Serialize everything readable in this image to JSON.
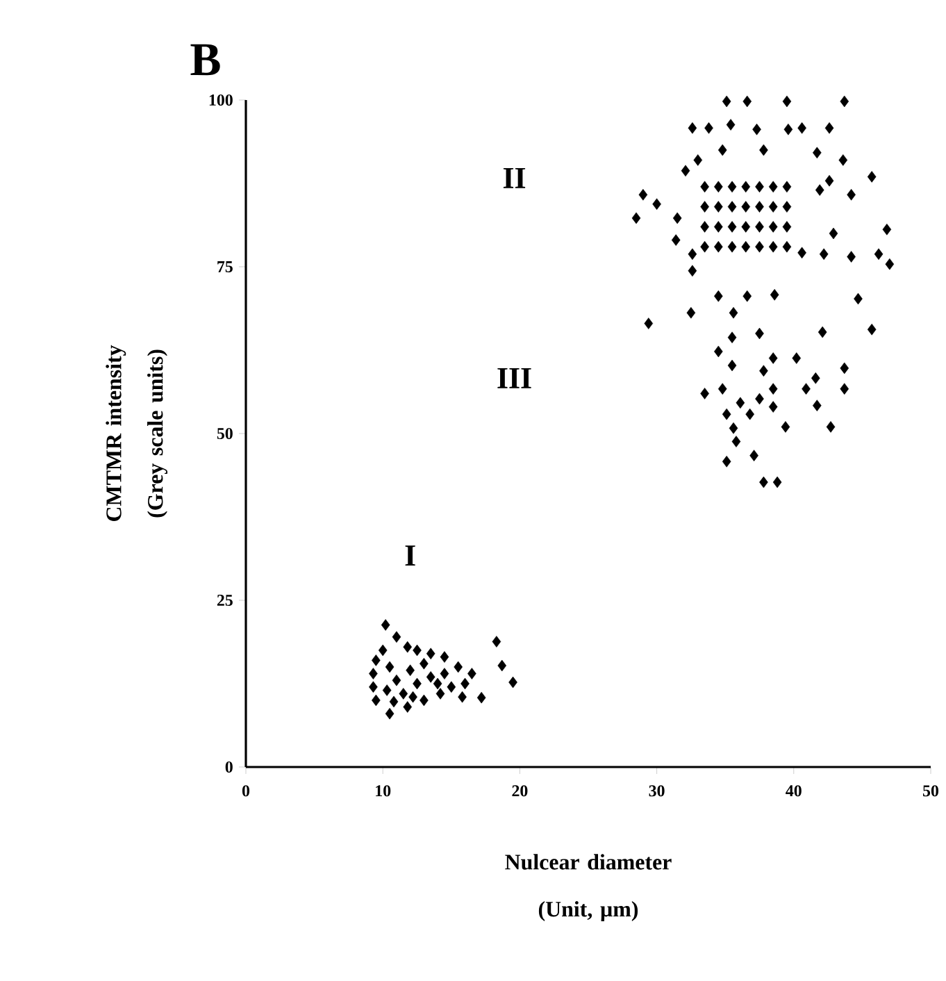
{
  "chart_data": {
    "type": "scatter",
    "title": "B",
    "xlabel": "Nulcear diameter (Unit, µm)",
    "ylabel": "CMTMR intensity (Grey scale units)",
    "xlim": [
      0,
      50
    ],
    "xticks": [
      0,
      10,
      20,
      30,
      40,
      50
    ],
    "ylim": [
      0,
      100
    ],
    "yticks": [
      0,
      25,
      50,
      75,
      100
    ],
    "marker": "diamond",
    "annotations": [
      "I",
      "II",
      "III"
    ],
    "series": [
      {
        "color": "#000000",
        "x": [
          10.2,
          11,
          11.8,
          12.5,
          13.5,
          14.5,
          15.5,
          16.5,
          18.3,
          18.7,
          19.5,
          17.2,
          15.8,
          14.2,
          13,
          11.8,
          10.5,
          9.5,
          9.3,
          9.3,
          9.5,
          10,
          10.5,
          11,
          11.5,
          12,
          12.5,
          13,
          13.5,
          14,
          14.5,
          15,
          10.3,
          10.8,
          12.2,
          16,
          35.1,
          36.6,
          39.5,
          43.7,
          32.6,
          33.8,
          35.4,
          37.3,
          39.6,
          40.6,
          42.6,
          34.8,
          37.8,
          41.7,
          43.6,
          45.7,
          33,
          32.1,
          29,
          28.5,
          30,
          31.5,
          31.4,
          32.6,
          32.6,
          42.9,
          46.8,
          42.2,
          44.2,
          46.2,
          47,
          40.6,
          41.9,
          44.2,
          42.6,
          33.5,
          34.5,
          35.5,
          36.5,
          37.5,
          38.5,
          39.5,
          33.5,
          34.5,
          35.5,
          36.5,
          37.5,
          38.5,
          39.5,
          33.5,
          34.5,
          35.5,
          36.5,
          37.5,
          38.5,
          39.5,
          33.5,
          34.5,
          35.5,
          36.5,
          37.5,
          38.5,
          39.5,
          32.5,
          29.4,
          34.5,
          35.6,
          36.6,
          38.6,
          44.7,
          45.7,
          42.1,
          37.5,
          35.5,
          34.5,
          35.5,
          40.2,
          38.5,
          37.8,
          43.7,
          41.6,
          43.7,
          40.9,
          33.5,
          34.8,
          38.5,
          36.1,
          37.5,
          35.1,
          36.8,
          38.5,
          41.7,
          39.4,
          42.7,
          35.6,
          35.8,
          35.1,
          37.1,
          37.8,
          38.8
        ],
        "values": [
          21.3,
          19.5,
          18,
          17.5,
          17,
          16.5,
          15,
          14,
          18.8,
          15.2,
          12.7,
          10.4,
          10.5,
          11,
          10,
          9,
          8,
          10,
          12,
          14,
          16,
          17.5,
          15,
          13,
          11,
          14.5,
          12.5,
          15.5,
          13.5,
          12.5,
          14,
          12,
          11.5,
          9.8,
          10.5,
          12.5,
          99.8,
          99.8,
          99.8,
          99.8,
          95.8,
          95.8,
          96.3,
          95.6,
          95.6,
          95.8,
          95.8,
          92.5,
          92.5,
          92.1,
          91,
          88.5,
          91,
          89.4,
          85.8,
          82.3,
          84.4,
          82.3,
          79,
          76.9,
          74.4,
          80,
          80.6,
          76.9,
          76.5,
          76.9,
          75.4,
          77.1,
          86.5,
          85.8,
          87.9,
          78,
          78,
          78,
          78,
          78,
          78,
          78,
          81,
          81,
          81,
          81,
          81,
          81,
          81,
          84,
          84,
          84,
          84,
          84,
          84,
          84,
          87,
          87,
          87,
          87,
          87,
          87,
          87,
          68.1,
          66.5,
          70.6,
          68.1,
          70.6,
          70.8,
          70.2,
          65.6,
          65.2,
          65,
          64.4,
          62.3,
          60.2,
          61.3,
          61.3,
          59.4,
          59.8,
          58.3,
          56.7,
          56.7,
          56,
          56.7,
          56.7,
          54.6,
          55.2,
          52.9,
          52.9,
          54,
          54.2,
          51,
          51,
          50.8,
          48.8,
          45.8,
          46.7,
          42.7,
          42.7
        ]
      }
    ]
  }
}
